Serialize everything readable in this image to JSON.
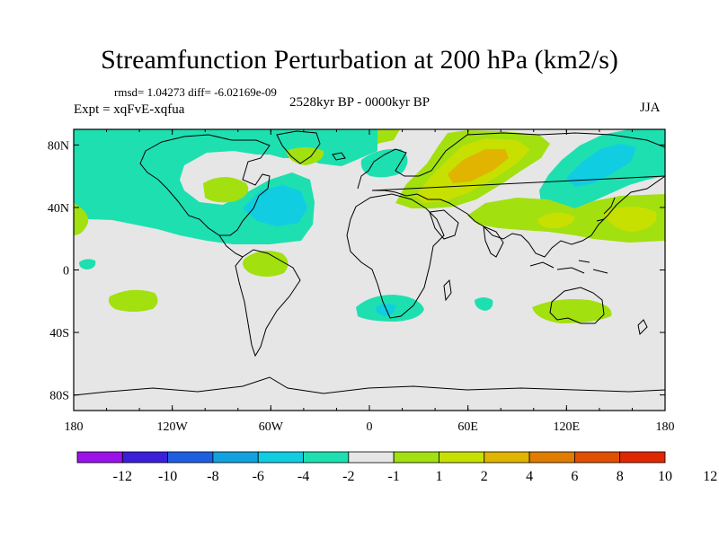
{
  "title": "Streamfunction Perturbation at 200 hPa (km2/s)",
  "stats": "rmsd= 1.04273 diff= -6.02169e-09",
  "period": "2528kyr BP - 0000kyr BP",
  "experiment": "Expt = xqFvE-xqfua",
  "season": "JJA",
  "axes": {
    "x_ticks": [
      "180",
      "120W",
      "60W",
      "0",
      "60E",
      "120E",
      "180"
    ],
    "y_ticks": [
      "80N",
      "40N",
      "0",
      "40S",
      "80S"
    ]
  },
  "colorbar": {
    "labels": [
      "-12",
      "-10",
      "-8",
      "-6",
      "-4",
      "-2",
      "-1",
      "1",
      "2",
      "4",
      "6",
      "8",
      "10",
      "12"
    ],
    "colors": [
      "#9a12e8",
      "#3c1fd8",
      "#1e5fe0",
      "#12a2e0",
      "#10cde2",
      "#1edfb0",
      "#e6e6e6",
      "#a2e010",
      "#c8e000",
      "#e0b400",
      "#e07c00",
      "#e05000",
      "#e02800"
    ]
  },
  "colors": {
    "land_background": "#e6e6e6",
    "coastline": "#000000"
  }
}
